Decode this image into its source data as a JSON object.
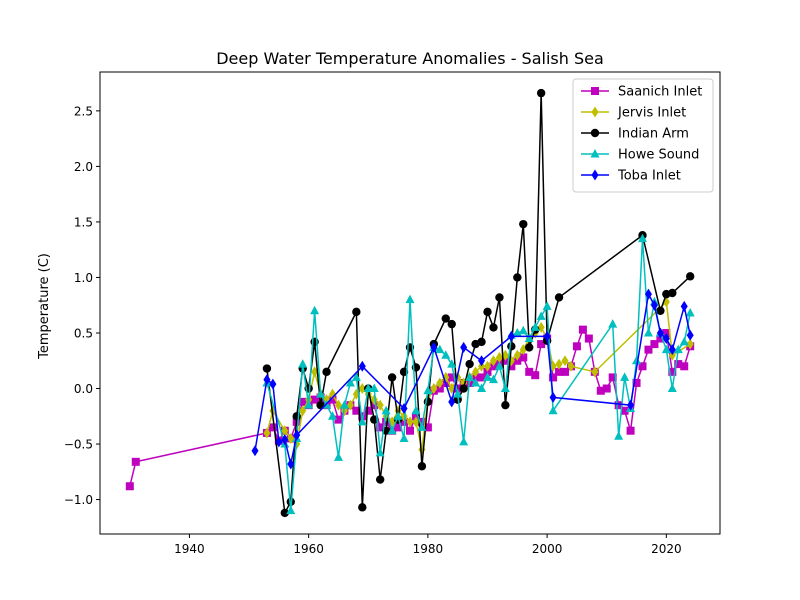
{
  "chart_data": {
    "type": "line",
    "title": "Deep Water Temperature Anomalies - Salish Sea",
    "xlabel": "",
    "ylabel": "Temperature (C)",
    "xlim": [
      1925,
      2029
    ],
    "ylim": [
      -1.31,
      2.85
    ],
    "x_ticks": [
      1940,
      1960,
      1980,
      2000,
      2020
    ],
    "y_ticks": [
      -1.0,
      -0.5,
      0.0,
      0.5,
      1.0,
      1.5,
      2.0,
      2.5
    ],
    "x_tick_labels": [
      "1940",
      "1960",
      "1980",
      "2000",
      "2020"
    ],
    "y_tick_labels": [
      "−1.0",
      "−0.5",
      "0.0",
      "0.5",
      "1.0",
      "1.5",
      "2.0",
      "2.5"
    ],
    "grid": false,
    "legend_position": "top-right",
    "series": [
      {
        "name": "Saanich Inlet",
        "color": "#bf00bf",
        "marker": "square",
        "points": [
          [
            1930,
            -0.88
          ],
          [
            1931,
            -0.66
          ],
          [
            1953,
            -0.4
          ],
          [
            1954,
            -0.35
          ],
          [
            1955,
            -0.47
          ],
          [
            1956,
            -0.38
          ],
          [
            1957,
            -0.45
          ],
          [
            1958,
            -0.3
          ],
          [
            1959,
            -0.12
          ],
          [
            1960,
            -0.15
          ],
          [
            1961,
            -0.1
          ],
          [
            1962,
            -0.08
          ],
          [
            1963,
            -0.15
          ],
          [
            1964,
            -0.1
          ],
          [
            1965,
            -0.28
          ],
          [
            1966,
            -0.2
          ],
          [
            1967,
            -0.15
          ],
          [
            1968,
            -0.2
          ],
          [
            1969,
            -0.25
          ],
          [
            1970,
            -0.2
          ],
          [
            1971,
            -0.15
          ],
          [
            1972,
            -0.35
          ],
          [
            1973,
            -0.3
          ],
          [
            1974,
            -0.38
          ],
          [
            1975,
            -0.35
          ],
          [
            1976,
            -0.3
          ],
          [
            1977,
            -0.38
          ],
          [
            1978,
            -0.25
          ],
          [
            1979,
            -0.3
          ],
          [
            1980,
            -0.35
          ],
          [
            1981,
            -0.02
          ],
          [
            1982,
            0.0
          ],
          [
            1983,
            0.05
          ],
          [
            1984,
            0.1
          ],
          [
            1985,
            0.0
          ],
          [
            1986,
            0.05
          ],
          [
            1987,
            0.05
          ],
          [
            1988,
            0.1
          ],
          [
            1989,
            0.1
          ],
          [
            1990,
            0.15
          ],
          [
            1991,
            0.2
          ],
          [
            1992,
            0.22
          ],
          [
            1993,
            0.25
          ],
          [
            1994,
            0.2
          ],
          [
            1995,
            0.25
          ],
          [
            1996,
            0.28
          ],
          [
            1997,
            0.15
          ],
          [
            1998,
            0.12
          ],
          [
            1999,
            0.4
          ],
          [
            2000,
            0.45
          ],
          [
            2001,
            0.1
          ],
          [
            2002,
            0.15
          ],
          [
            2003,
            0.15
          ],
          [
            2004,
            0.2
          ],
          [
            2005,
            0.38
          ],
          [
            2006,
            0.53
          ],
          [
            2007,
            0.45
          ],
          [
            2008,
            0.15
          ],
          [
            2009,
            -0.02
          ],
          [
            2010,
            0.0
          ],
          [
            2011,
            0.1
          ],
          [
            2012,
            -0.15
          ],
          [
            2013,
            -0.2
          ],
          [
            2014,
            -0.38
          ],
          [
            2015,
            0.05
          ],
          [
            2016,
            0.2
          ],
          [
            2017,
            0.35
          ],
          [
            2018,
            0.4
          ],
          [
            2019,
            0.45
          ],
          [
            2020,
            0.5
          ],
          [
            2021,
            0.15
          ],
          [
            2022,
            0.22
          ],
          [
            2023,
            0.2
          ],
          [
            2024,
            0.38
          ]
        ]
      },
      {
        "name": "Jervis Inlet",
        "color": "#bfbf00",
        "marker": "thin_diamond",
        "points": [
          [
            1953,
            -0.4
          ],
          [
            1954,
            -0.2
          ],
          [
            1956,
            -0.38
          ],
          [
            1957,
            -0.45
          ],
          [
            1958,
            -0.5
          ],
          [
            1959,
            -0.2
          ],
          [
            1960,
            -0.1
          ],
          [
            1961,
            0.15
          ],
          [
            1962,
            -0.05
          ],
          [
            1963,
            -0.1
          ],
          [
            1964,
            -0.05
          ],
          [
            1965,
            -0.15
          ],
          [
            1966,
            -0.2
          ],
          [
            1967,
            -0.15
          ],
          [
            1968,
            -0.05
          ],
          [
            1969,
            0.0
          ],
          [
            1970,
            -0.05
          ],
          [
            1971,
            -0.1
          ],
          [
            1972,
            -0.15
          ],
          [
            1973,
            -0.25
          ],
          [
            1974,
            -0.3
          ],
          [
            1975,
            -0.2
          ],
          [
            1976,
            -0.25
          ],
          [
            1977,
            -0.3
          ],
          [
            1978,
            -0.3
          ],
          [
            1979,
            -0.55
          ],
          [
            1980,
            -0.1
          ],
          [
            1981,
            0.0
          ],
          [
            1982,
            0.05
          ],
          [
            1983,
            0.1
          ],
          [
            1984,
            0.0
          ],
          [
            1985,
            0.1
          ],
          [
            1986,
            0.05
          ],
          [
            1987,
            0.1
          ],
          [
            1988,
            0.15
          ],
          [
            1989,
            0.2
          ],
          [
            1990,
            0.2
          ],
          [
            1991,
            0.25
          ],
          [
            1992,
            0.28
          ],
          [
            1993,
            0.3
          ],
          [
            1994,
            0.25
          ],
          [
            1995,
            0.3
          ],
          [
            1996,
            0.35
          ],
          [
            1997,
            0.45
          ],
          [
            1998,
            0.5
          ],
          [
            1999,
            0.55
          ],
          [
            2000,
            0.45
          ],
          [
            2001,
            0.2
          ],
          [
            2002,
            0.22
          ],
          [
            2003,
            0.25
          ],
          [
            2004,
            0.2
          ],
          [
            2008,
            0.15
          ],
          [
            2020,
            0.78
          ],
          [
            2021,
            0.3
          ],
          [
            2024,
            0.4
          ]
        ]
      },
      {
        "name": "Indian Arm",
        "color": "#000000",
        "marker": "circle",
        "points": [
          [
            1953,
            0.18
          ],
          [
            1956,
            -1.12
          ],
          [
            1957,
            -1.02
          ],
          [
            1958,
            -0.25
          ],
          [
            1959,
            0.18
          ],
          [
            1960,
            0.0
          ],
          [
            1961,
            0.42
          ],
          [
            1962,
            -0.15
          ],
          [
            1963,
            0.15
          ],
          [
            1968,
            0.69
          ],
          [
            1969,
            -1.07
          ],
          [
            1970,
            0.0
          ],
          [
            1971,
            -0.28
          ],
          [
            1972,
            -0.82
          ],
          [
            1973,
            -0.38
          ],
          [
            1974,
            0.1
          ],
          [
            1975,
            -0.28
          ],
          [
            1976,
            0.15
          ],
          [
            1977,
            0.37
          ],
          [
            1978,
            0.19
          ],
          [
            1979,
            -0.7
          ],
          [
            1980,
            -0.12
          ],
          [
            1981,
            0.4
          ],
          [
            1983,
            0.63
          ],
          [
            1984,
            0.58
          ],
          [
            1985,
            -0.1
          ],
          [
            1986,
            0.0
          ],
          [
            1987,
            0.22
          ],
          [
            1988,
            0.4
          ],
          [
            1989,
            0.42
          ],
          [
            1990,
            0.69
          ],
          [
            1991,
            0.55
          ],
          [
            1992,
            0.82
          ],
          [
            1993,
            -0.15
          ],
          [
            1994,
            0.38
          ],
          [
            1995,
            1.0
          ],
          [
            1996,
            1.48
          ],
          [
            1997,
            0.37
          ],
          [
            1998,
            0.53
          ],
          [
            1999,
            2.66
          ],
          [
            2000,
            0.43
          ],
          [
            2002,
            0.82
          ],
          [
            2016,
            1.38
          ],
          [
            2019,
            0.7
          ],
          [
            2020,
            0.85
          ],
          [
            2021,
            0.86
          ],
          [
            2024,
            1.01
          ]
        ]
      },
      {
        "name": "Howe Sound",
        "color": "#00bfbf",
        "marker": "triangle",
        "points": [
          [
            1953,
            0.05
          ],
          [
            1956,
            -0.5
          ],
          [
            1957,
            -1.1
          ],
          [
            1958,
            -0.45
          ],
          [
            1959,
            0.22
          ],
          [
            1960,
            -0.15
          ],
          [
            1961,
            0.7
          ],
          [
            1962,
            -0.05
          ],
          [
            1963,
            -0.15
          ],
          [
            1964,
            -0.25
          ],
          [
            1965,
            -0.62
          ],
          [
            1966,
            -0.15
          ],
          [
            1967,
            0.05
          ],
          [
            1968,
            0.1
          ],
          [
            1969,
            -0.3
          ],
          [
            1970,
            0.0
          ],
          [
            1971,
            0.0
          ],
          [
            1972,
            -0.58
          ],
          [
            1973,
            -0.2
          ],
          [
            1974,
            -0.38
          ],
          [
            1975,
            -0.25
          ],
          [
            1976,
            -0.45
          ],
          [
            1977,
            0.8
          ],
          [
            1978,
            -0.2
          ],
          [
            1979,
            -0.35
          ],
          [
            1980,
            -0.02
          ],
          [
            1981,
            0.37
          ],
          [
            1982,
            0.35
          ],
          [
            1983,
            0.3
          ],
          [
            1984,
            0.22
          ],
          [
            1985,
            -0.05
          ],
          [
            1986,
            -0.48
          ],
          [
            1987,
            0.1
          ],
          [
            1988,
            0.05
          ],
          [
            1989,
            0.0
          ],
          [
            1990,
            0.1
          ],
          [
            1991,
            0.08
          ],
          [
            1992,
            0.2
          ],
          [
            1993,
            0.0
          ],
          [
            1994,
            0.48
          ],
          [
            1995,
            0.5
          ],
          [
            1996,
            0.52
          ],
          [
            1997,
            0.45
          ],
          [
            1998,
            0.55
          ],
          [
            1999,
            0.65
          ],
          [
            2000,
            0.74
          ],
          [
            2001,
            -0.2
          ],
          [
            2011,
            0.58
          ],
          [
            2012,
            -0.43
          ],
          [
            2013,
            0.1
          ],
          [
            2014,
            -0.18
          ],
          [
            2015,
            0.25
          ],
          [
            2016,
            1.35
          ],
          [
            2017,
            0.5
          ],
          [
            2018,
            0.78
          ],
          [
            2019,
            0.5
          ],
          [
            2020,
            0.35
          ],
          [
            2021,
            0.0
          ],
          [
            2022,
            0.35
          ],
          [
            2023,
            0.42
          ],
          [
            2024,
            0.68
          ]
        ]
      },
      {
        "name": "Toba Inlet",
        "color": "#0000ff",
        "marker": "thin_diamond",
        "points": [
          [
            1951,
            -0.56
          ],
          [
            1953,
            0.08
          ],
          [
            1954,
            0.04
          ],
          [
            1955,
            -0.48
          ],
          [
            1956,
            -0.46
          ],
          [
            1957,
            -0.68
          ],
          [
            1958,
            -0.42
          ],
          [
            1969,
            0.2
          ],
          [
            1976,
            -0.18
          ],
          [
            1981,
            0.37
          ],
          [
            1984,
            -0.12
          ],
          [
            1986,
            0.37
          ],
          [
            1989,
            0.25
          ],
          [
            1994,
            0.47
          ],
          [
            2000,
            0.47
          ],
          [
            2001,
            -0.08
          ],
          [
            2014,
            -0.15
          ],
          [
            2017,
            0.85
          ],
          [
            2018,
            0.75
          ],
          [
            2019,
            0.5
          ],
          [
            2020,
            0.45
          ],
          [
            2021,
            0.35
          ],
          [
            2023,
            0.74
          ],
          [
            2024,
            0.48
          ]
        ]
      }
    ]
  }
}
